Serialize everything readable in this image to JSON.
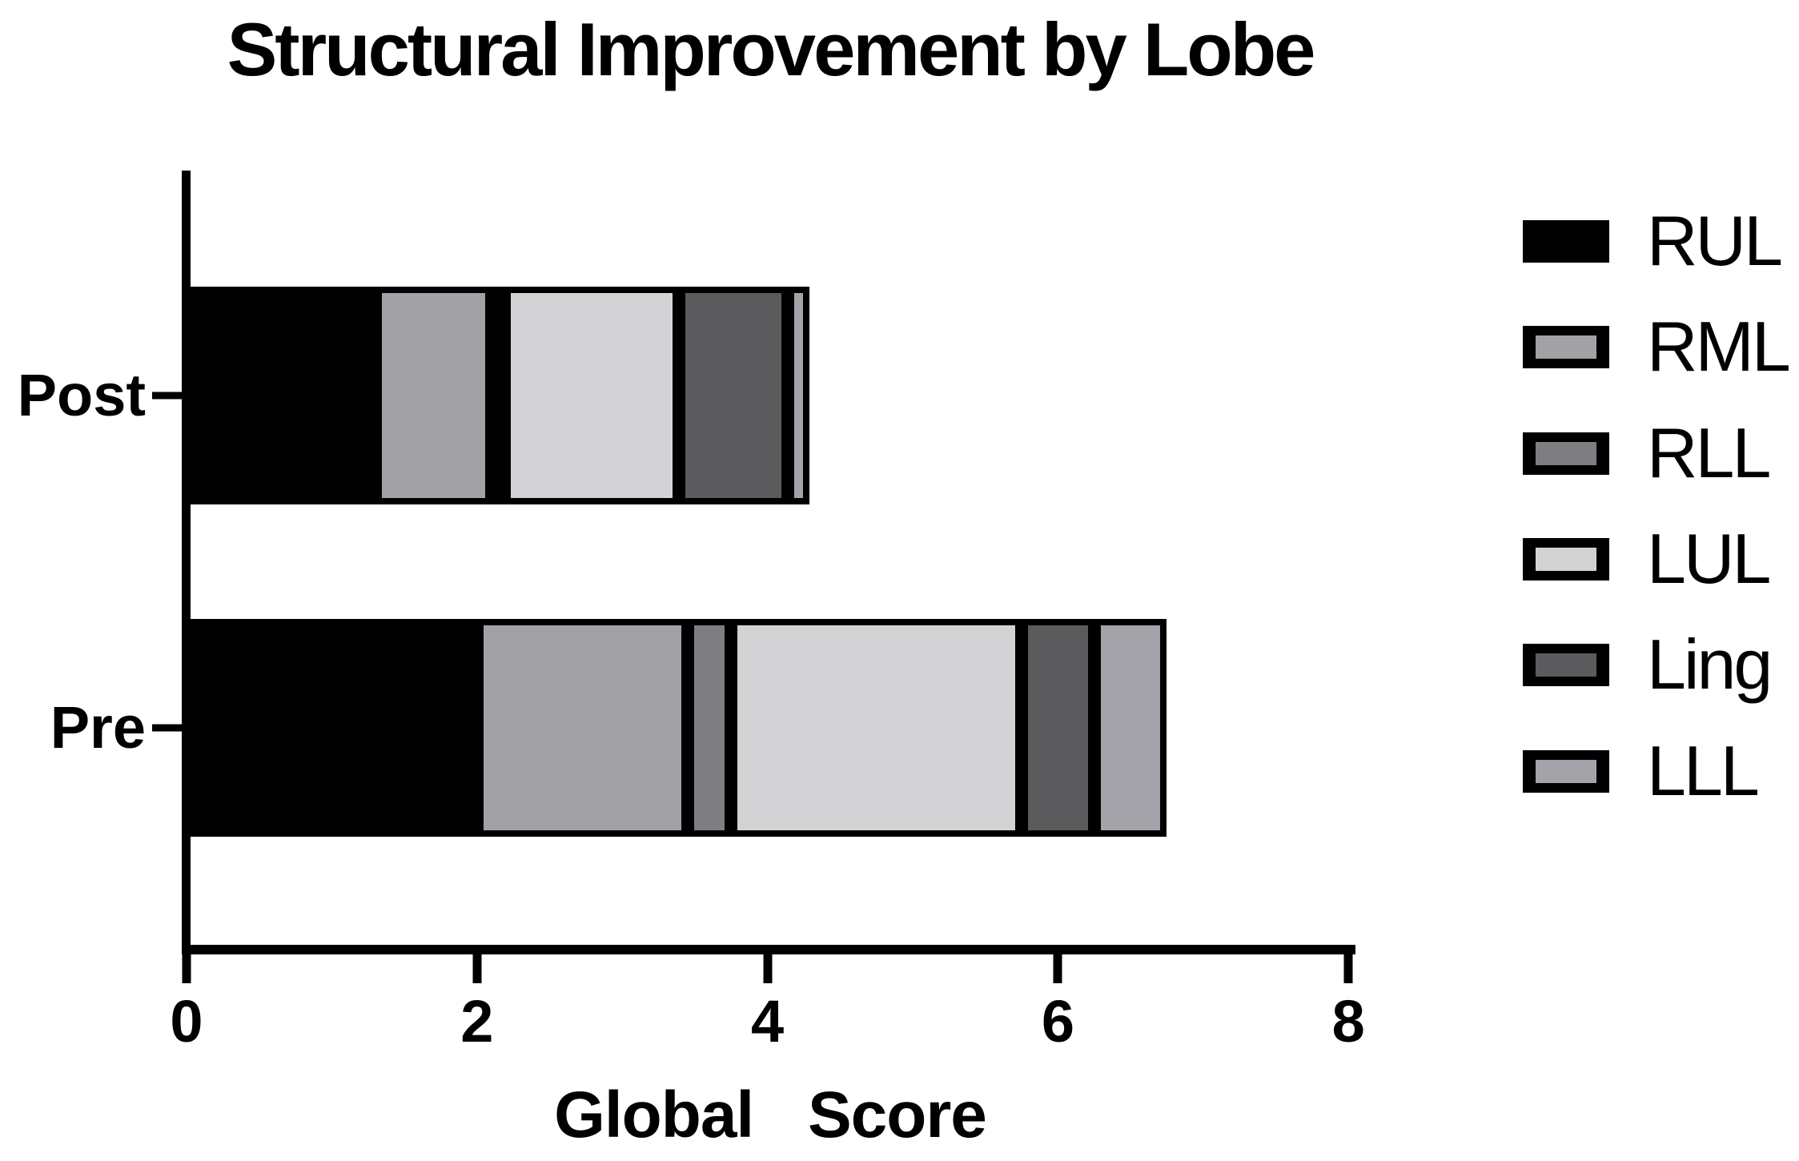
{
  "chart_data": {
    "type": "bar",
    "orientation": "horizontal",
    "stacked": true,
    "title": "Structural Improvement by Lobe",
    "xlabel": "Global Score",
    "xlim": [
      0,
      8
    ],
    "xticks": [
      0,
      2,
      4,
      6,
      8
    ],
    "grid": false,
    "legend_position": "right",
    "categories": [
      "Post",
      "Pre"
    ],
    "series": [
      {
        "name": "RUL",
        "color": "#000000",
        "values": [
          1.3,
          2.0
        ]
      },
      {
        "name": "RML",
        "color": "#a1a1a6",
        "values": [
          0.8,
          1.45
        ]
      },
      {
        "name": "RLL",
        "color": "#7e7e82",
        "values": [
          0.05,
          0.3
        ]
      },
      {
        "name": "LUL",
        "color": "#d3d3d5",
        "values": [
          1.2,
          2.0
        ]
      },
      {
        "name": "Ling",
        "color": "#5b5b5e",
        "values": [
          0.75,
          0.5
        ]
      },
      {
        "name": "LLL",
        "color": "#a3a3a9",
        "values": [
          0.15,
          0.5
        ]
      }
    ],
    "totals": [
      4.25,
      6.75
    ]
  },
  "colors": {
    "background": "#ffffff",
    "axis": "#000000",
    "text": "#000000",
    "segment_border": "#000000"
  }
}
